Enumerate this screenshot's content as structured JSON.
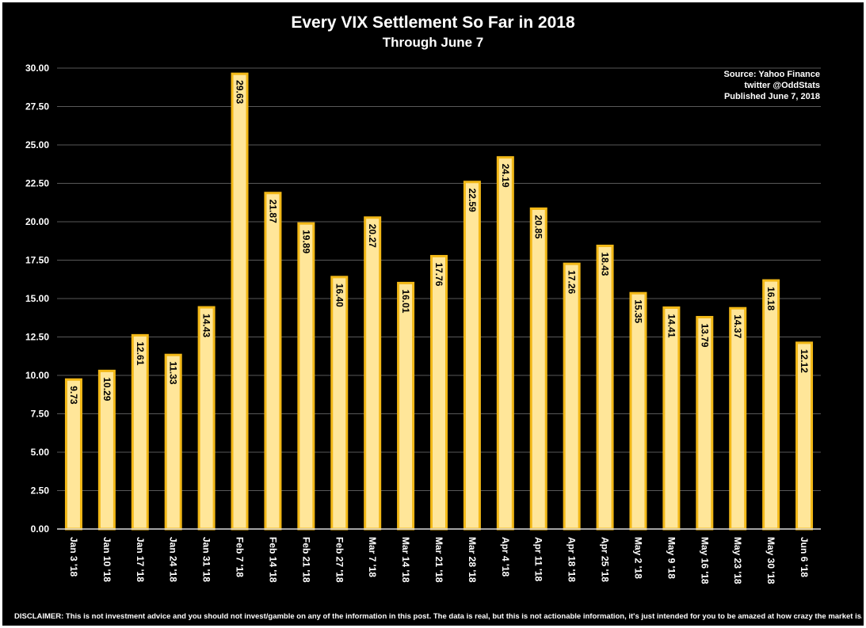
{
  "chart_data": {
    "type": "bar",
    "title": "Every VIX Settlement So Far in 2018",
    "subtitle": "Through June 7",
    "source_lines": [
      "Source: Yahoo Finance",
      "twitter @OddStats",
      "Published June 7, 2018"
    ],
    "disclaimer": "DISCLAIMER: This is not investment advice and you should not invest/gamble on any of the information in this post. The data is real, but this is not actionable information, it's just intended for you to be amazed at how crazy the market is.",
    "categories": [
      "Jan 3 '18",
      "Jan 10 '18",
      "Jan 17 '18",
      "Jan 24 '18",
      "Jan 31 '18",
      "Feb 7 '18",
      "Feb 14 '18",
      "Feb 21 '18",
      "Feb 27 '18",
      "Mar 7 '18",
      "Mar 14 '18",
      "Mar 21 '18",
      "Mar 28 '18",
      "Apr 4 '18",
      "Apr 11 '18",
      "Apr 18 '18",
      "Apr 25 '18",
      "May 2 '18",
      "May 9 '18",
      "May 16 '18",
      "May 23 '18",
      "May 30 '18",
      "Jun 6 '18"
    ],
    "values": [
      9.73,
      10.29,
      12.61,
      11.33,
      14.43,
      29.63,
      21.87,
      19.89,
      16.4,
      20.27,
      16.01,
      17.76,
      22.59,
      24.19,
      20.85,
      17.26,
      18.43,
      15.35,
      14.41,
      13.79,
      14.37,
      16.18,
      12.12
    ],
    "value_labels": [
      "9.73",
      "10.29",
      "12.61",
      "11.33",
      "14.43",
      "29.63",
      "21.87",
      "19.89",
      "16.40",
      "20.27",
      "16.01",
      "17.76",
      "22.59",
      "24.19",
      "20.85",
      "17.26",
      "18.43",
      "15.35",
      "14.41",
      "13.79",
      "14.37",
      "16.18",
      "12.12"
    ],
    "yticks": [
      "0.00",
      "2.50",
      "5.00",
      "7.50",
      "10.00",
      "12.50",
      "15.00",
      "17.50",
      "20.00",
      "22.50",
      "25.00",
      "27.50",
      "30.00"
    ],
    "ylim": [
      0,
      30
    ],
    "xlabel": "",
    "ylabel": "",
    "grid": true,
    "colors": {
      "background": "#000000",
      "bar_fill": "#FFE699",
      "bar_border": "#F2B817",
      "gridline": "#595959",
      "text": "#FFFFFF"
    }
  }
}
